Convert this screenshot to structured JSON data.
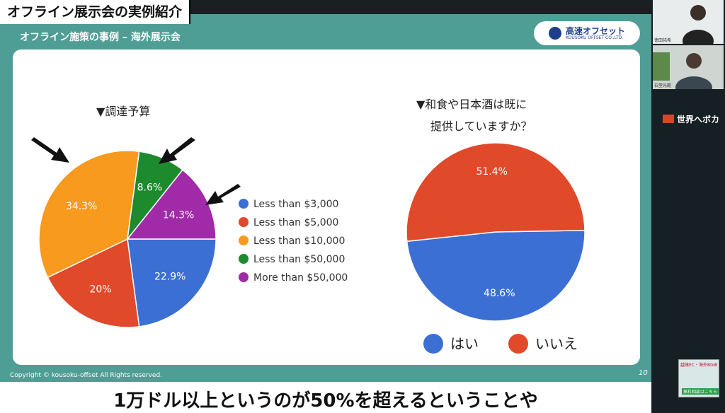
{
  "header": {
    "title_tag": "オフライン展示会の実例紹介"
  },
  "slide": {
    "subtitle": "オフライン施策の事例 – 海外展示会",
    "logo": {
      "main": "高速オフセット",
      "sub": "KOUSOKU OFFSET CO.,LTD."
    },
    "copyright": "Copyright © kousoku-offset All Rights reserved.",
    "page_number": "10"
  },
  "caption": "1万ドル以上というのが50%を超えるということや",
  "sidebar": {
    "participant1_name": "徳田祐希",
    "participant2_name": "石堂光範",
    "banner_text": "世界へボカ",
    "promo_line1": "越境EC・海外BtoB",
    "promo_line2": "無料相談はこちら"
  },
  "colors": {
    "blue": "#3b6fd4",
    "red": "#e0492a",
    "orange": "#f79a1e",
    "green": "#1e8a2e",
    "purple": "#a02aa8",
    "teal": "#4f9e95"
  },
  "chart_data": [
    {
      "type": "pie",
      "title": "▼調達予算",
      "legend_position": "right",
      "categories": [
        "Less than $3,000",
        "Less than $5,000",
        "Less than $10,000",
        "Less than $50,000",
        "More than $50,000"
      ],
      "values": [
        22.9,
        20,
        34.3,
        8.6,
        14.3
      ],
      "labels": [
        "22.9%",
        "20%",
        "34.3%",
        "8.6%",
        "14.3%"
      ],
      "colors": [
        "#3b6fd4",
        "#e0492a",
        "#f79a1e",
        "#1e8a2e",
        "#a02aa8"
      ],
      "annotations": [
        "arrow pointing to Less than $10,000",
        "arrow pointing to Less than $50,000",
        "arrow pointing to More than $50,000"
      ]
    },
    {
      "type": "pie",
      "title_line1": "▼和食や日本酒は既に",
      "title_line2": "提供していますか？",
      "legend_position": "bottom",
      "categories": [
        "はい",
        "いいえ"
      ],
      "values": [
        48.6,
        51.4
      ],
      "labels": [
        "48.6%",
        "51.4%"
      ],
      "colors": [
        "#3b6fd4",
        "#e0492a"
      ]
    }
  ]
}
